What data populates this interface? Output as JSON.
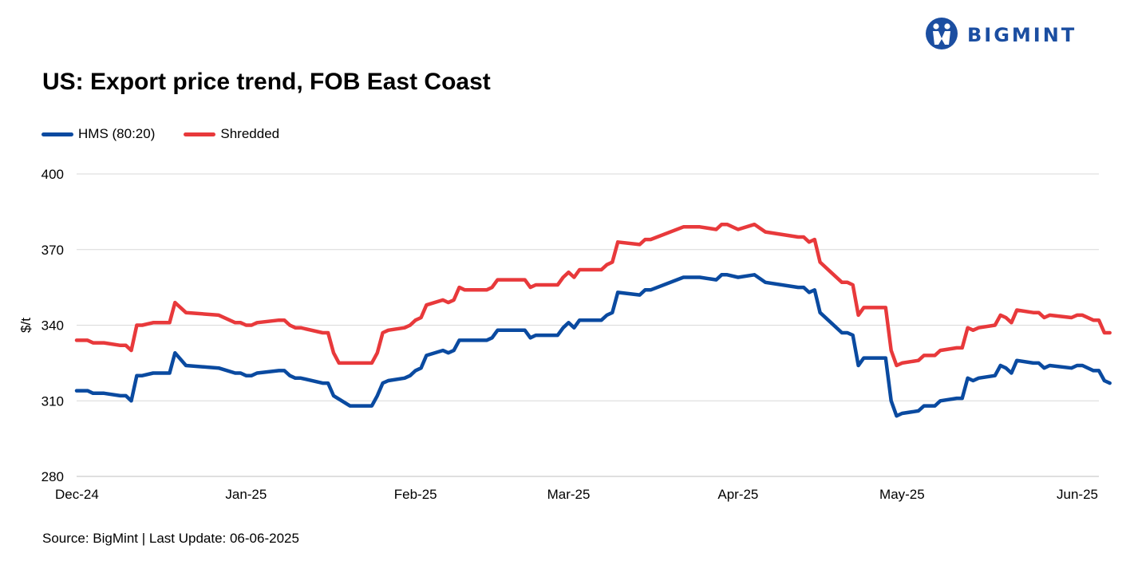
{
  "brand": {
    "name": "BIGMINT",
    "color": "#1b4ea1",
    "icon": "bigmint-figure-logo-icon"
  },
  "header": {
    "title": "US: Export price trend, FOB East Coast"
  },
  "footer": {
    "source": "Source: BigMint | Last Update: 06-06-2025"
  },
  "chart_data": {
    "type": "line",
    "title": "US: Export price trend, FOB East Coast",
    "xlabel": "",
    "ylabel": "$/t",
    "ylim": [
      280,
      400
    ],
    "yticks": [
      280,
      310,
      340,
      370,
      400
    ],
    "xlim": [
      "2024-12-01",
      "2025-06-06"
    ],
    "xticks": [
      {
        "date": "2024-12-01",
        "label": "Dec-24"
      },
      {
        "date": "2025-01-01",
        "label": "Jan-25"
      },
      {
        "date": "2025-02-01",
        "label": "Feb-25"
      },
      {
        "date": "2025-03-01",
        "label": "Mar-25"
      },
      {
        "date": "2025-04-01",
        "label": "Apr-25"
      },
      {
        "date": "2025-05-01",
        "label": "May-25"
      },
      {
        "date": "2025-06-01",
        "label": "Jun-25"
      }
    ],
    "grid": true,
    "legend": "top-left",
    "series": [
      {
        "name": "HMS (80:20)",
        "color": "#0a4aa0",
        "points": [
          [
            "2024-12-01",
            314
          ],
          [
            "2024-12-03",
            314
          ],
          [
            "2024-12-04",
            313
          ],
          [
            "2024-12-06",
            313
          ],
          [
            "2024-12-09",
            312
          ],
          [
            "2024-12-10",
            312
          ],
          [
            "2024-12-11",
            310
          ],
          [
            "2024-12-12",
            320
          ],
          [
            "2024-12-13",
            320
          ],
          [
            "2024-12-15",
            321
          ],
          [
            "2024-12-18",
            321
          ],
          [
            "2024-12-19",
            329
          ],
          [
            "2024-12-21",
            324
          ],
          [
            "2024-12-27",
            323
          ],
          [
            "2024-12-30",
            321
          ],
          [
            "2024-12-31",
            321
          ],
          [
            "2025-01-01",
            320
          ],
          [
            "2025-01-02",
            320
          ],
          [
            "2025-01-03",
            321
          ],
          [
            "2025-01-07",
            322
          ],
          [
            "2025-01-08",
            322
          ],
          [
            "2025-01-09",
            320
          ],
          [
            "2025-01-10",
            319
          ],
          [
            "2025-01-11",
            319
          ],
          [
            "2025-01-15",
            317
          ],
          [
            "2025-01-16",
            317
          ],
          [
            "2025-01-17",
            312
          ],
          [
            "2025-01-20",
            308
          ],
          [
            "2025-01-24",
            308
          ],
          [
            "2025-01-25",
            312
          ],
          [
            "2025-01-26",
            317
          ],
          [
            "2025-01-27",
            318
          ],
          [
            "2025-01-30",
            319
          ],
          [
            "2025-01-31",
            320
          ],
          [
            "2025-02-01",
            322
          ],
          [
            "2025-02-02",
            323
          ],
          [
            "2025-02-03",
            328
          ],
          [
            "2025-02-06",
            330
          ],
          [
            "2025-02-07",
            329
          ],
          [
            "2025-02-08",
            330
          ],
          [
            "2025-02-09",
            334
          ],
          [
            "2025-02-14",
            334
          ],
          [
            "2025-02-15",
            335
          ],
          [
            "2025-02-16",
            338
          ],
          [
            "2025-02-21",
            338
          ],
          [
            "2025-02-22",
            335
          ],
          [
            "2025-02-23",
            336
          ],
          [
            "2025-02-27",
            336
          ],
          [
            "2025-02-28",
            339
          ],
          [
            "2025-03-01",
            341
          ],
          [
            "2025-03-02",
            339
          ],
          [
            "2025-03-03",
            342
          ],
          [
            "2025-03-07",
            342
          ],
          [
            "2025-03-08",
            344
          ],
          [
            "2025-03-09",
            345
          ],
          [
            "2025-03-10",
            353
          ],
          [
            "2025-03-14",
            352
          ],
          [
            "2025-03-15",
            354
          ],
          [
            "2025-03-16",
            354
          ],
          [
            "2025-03-22",
            359
          ],
          [
            "2025-03-25",
            359
          ],
          [
            "2025-03-28",
            358
          ],
          [
            "2025-03-29",
            360
          ],
          [
            "2025-03-30",
            360
          ],
          [
            "2025-04-01",
            359
          ],
          [
            "2025-04-04",
            360
          ],
          [
            "2025-04-06",
            357
          ],
          [
            "2025-04-12",
            355
          ],
          [
            "2025-04-13",
            355
          ],
          [
            "2025-04-14",
            353
          ],
          [
            "2025-04-15",
            354
          ],
          [
            "2025-04-16",
            345
          ],
          [
            "2025-04-18",
            341
          ],
          [
            "2025-04-20",
            337
          ],
          [
            "2025-04-21",
            337
          ],
          [
            "2025-04-22",
            336
          ],
          [
            "2025-04-23",
            324
          ],
          [
            "2025-04-24",
            327
          ],
          [
            "2025-04-28",
            327
          ],
          [
            "2025-04-29",
            310
          ],
          [
            "2025-04-30",
            304
          ],
          [
            "2025-05-01",
            305
          ],
          [
            "2025-05-04",
            306
          ],
          [
            "2025-05-05",
            308
          ],
          [
            "2025-05-07",
            308
          ],
          [
            "2025-05-08",
            310
          ],
          [
            "2025-05-11",
            311
          ],
          [
            "2025-05-12",
            311
          ],
          [
            "2025-05-13",
            319
          ],
          [
            "2025-05-14",
            318
          ],
          [
            "2025-05-15",
            319
          ],
          [
            "2025-05-18",
            320
          ],
          [
            "2025-05-19",
            324
          ],
          [
            "2025-05-20",
            323
          ],
          [
            "2025-05-21",
            321
          ],
          [
            "2025-05-22",
            326
          ],
          [
            "2025-05-25",
            325
          ],
          [
            "2025-05-26",
            325
          ],
          [
            "2025-05-27",
            323
          ],
          [
            "2025-05-28",
            324
          ],
          [
            "2025-06-01",
            323
          ],
          [
            "2025-06-02",
            324
          ],
          [
            "2025-06-03",
            324
          ],
          [
            "2025-06-05",
            322
          ],
          [
            "2025-06-06",
            322
          ],
          [
            "2025-06-07",
            318
          ],
          [
            "2025-06-08",
            317
          ]
        ]
      },
      {
        "name": "Shredded",
        "color": "#e8393b",
        "points": [
          [
            "2024-12-01",
            334
          ],
          [
            "2024-12-03",
            334
          ],
          [
            "2024-12-04",
            333
          ],
          [
            "2024-12-06",
            333
          ],
          [
            "2024-12-09",
            332
          ],
          [
            "2024-12-10",
            332
          ],
          [
            "2024-12-11",
            330
          ],
          [
            "2024-12-12",
            340
          ],
          [
            "2024-12-13",
            340
          ],
          [
            "2024-12-15",
            341
          ],
          [
            "2024-12-18",
            341
          ],
          [
            "2024-12-19",
            349
          ],
          [
            "2024-12-21",
            345
          ],
          [
            "2024-12-27",
            344
          ],
          [
            "2024-12-30",
            341
          ],
          [
            "2024-12-31",
            341
          ],
          [
            "2025-01-01",
            340
          ],
          [
            "2025-01-02",
            340
          ],
          [
            "2025-01-03",
            341
          ],
          [
            "2025-01-07",
            342
          ],
          [
            "2025-01-08",
            342
          ],
          [
            "2025-01-09",
            340
          ],
          [
            "2025-01-10",
            339
          ],
          [
            "2025-01-11",
            339
          ],
          [
            "2025-01-15",
            337
          ],
          [
            "2025-01-16",
            337
          ],
          [
            "2025-01-17",
            329
          ],
          [
            "2025-01-18",
            325
          ],
          [
            "2025-01-24",
            325
          ],
          [
            "2025-01-25",
            329
          ],
          [
            "2025-01-26",
            337
          ],
          [
            "2025-01-27",
            338
          ],
          [
            "2025-01-30",
            339
          ],
          [
            "2025-01-31",
            340
          ],
          [
            "2025-02-01",
            342
          ],
          [
            "2025-02-02",
            343
          ],
          [
            "2025-02-03",
            348
          ],
          [
            "2025-02-06",
            350
          ],
          [
            "2025-02-07",
            349
          ],
          [
            "2025-02-08",
            350
          ],
          [
            "2025-02-09",
            355
          ],
          [
            "2025-02-10",
            354
          ],
          [
            "2025-02-14",
            354
          ],
          [
            "2025-02-15",
            355
          ],
          [
            "2025-02-16",
            358
          ],
          [
            "2025-02-21",
            358
          ],
          [
            "2025-02-22",
            355
          ],
          [
            "2025-02-23",
            356
          ],
          [
            "2025-02-27",
            356
          ],
          [
            "2025-02-28",
            359
          ],
          [
            "2025-03-01",
            361
          ],
          [
            "2025-03-02",
            359
          ],
          [
            "2025-03-03",
            362
          ],
          [
            "2025-03-07",
            362
          ],
          [
            "2025-03-08",
            364
          ],
          [
            "2025-03-09",
            365
          ],
          [
            "2025-03-10",
            373
          ],
          [
            "2025-03-14",
            372
          ],
          [
            "2025-03-15",
            374
          ],
          [
            "2025-03-16",
            374
          ],
          [
            "2025-03-22",
            379
          ],
          [
            "2025-03-25",
            379
          ],
          [
            "2025-03-28",
            378
          ],
          [
            "2025-03-29",
            380
          ],
          [
            "2025-03-30",
            380
          ],
          [
            "2025-04-01",
            378
          ],
          [
            "2025-04-04",
            380
          ],
          [
            "2025-04-06",
            377
          ],
          [
            "2025-04-12",
            375
          ],
          [
            "2025-04-13",
            375
          ],
          [
            "2025-04-14",
            373
          ],
          [
            "2025-04-15",
            374
          ],
          [
            "2025-04-16",
            365
          ],
          [
            "2025-04-18",
            361
          ],
          [
            "2025-04-20",
            357
          ],
          [
            "2025-04-21",
            357
          ],
          [
            "2025-04-22",
            356
          ],
          [
            "2025-04-23",
            344
          ],
          [
            "2025-04-24",
            347
          ],
          [
            "2025-04-28",
            347
          ],
          [
            "2025-04-29",
            330
          ],
          [
            "2025-04-30",
            324
          ],
          [
            "2025-05-01",
            325
          ],
          [
            "2025-05-04",
            326
          ],
          [
            "2025-05-05",
            328
          ],
          [
            "2025-05-07",
            328
          ],
          [
            "2025-05-08",
            330
          ],
          [
            "2025-05-11",
            331
          ],
          [
            "2025-05-12",
            331
          ],
          [
            "2025-05-13",
            339
          ],
          [
            "2025-05-14",
            338
          ],
          [
            "2025-05-15",
            339
          ],
          [
            "2025-05-18",
            340
          ],
          [
            "2025-05-19",
            344
          ],
          [
            "2025-05-20",
            343
          ],
          [
            "2025-05-21",
            341
          ],
          [
            "2025-05-22",
            346
          ],
          [
            "2025-05-25",
            345
          ],
          [
            "2025-05-26",
            345
          ],
          [
            "2025-05-27",
            343
          ],
          [
            "2025-05-28",
            344
          ],
          [
            "2025-06-01",
            343
          ],
          [
            "2025-06-02",
            344
          ],
          [
            "2025-06-03",
            344
          ],
          [
            "2025-06-05",
            342
          ],
          [
            "2025-06-06",
            342
          ],
          [
            "2025-06-07",
            337
          ],
          [
            "2025-06-08",
            337
          ]
        ]
      }
    ]
  }
}
